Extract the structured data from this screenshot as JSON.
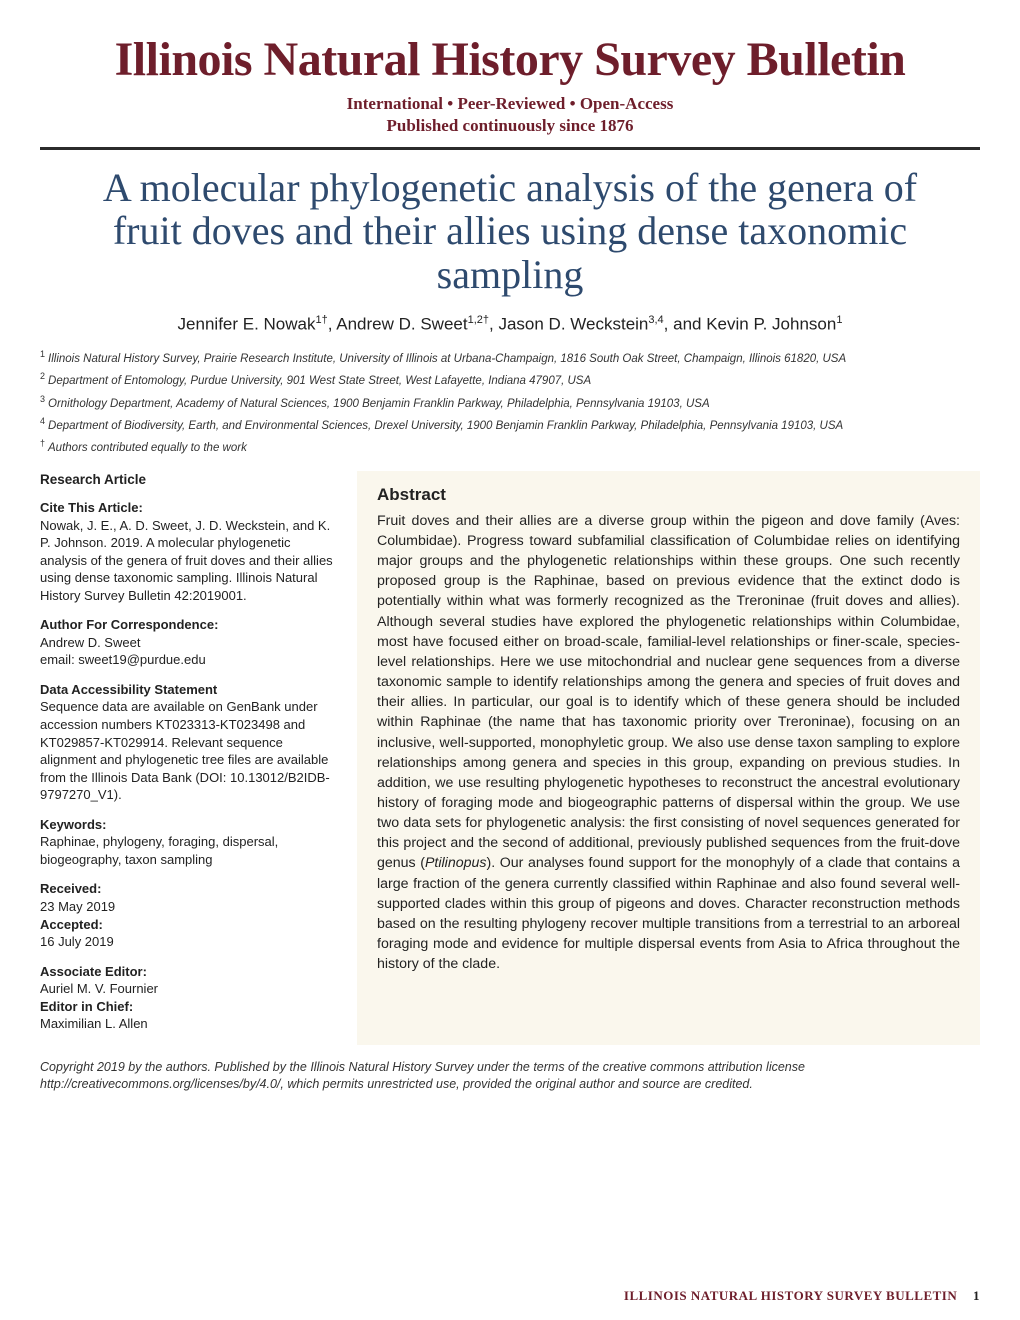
{
  "journal": {
    "title": "Illinois Natural History Survey Bulletin",
    "subtitle_line1": "International  •  Peer-Reviewed  •  Open-Access",
    "subtitle_line2": "Published continuously since 1876"
  },
  "article": {
    "title": "A molecular phylogenetic analysis of the genera of fruit doves and their allies using dense taxonomic sampling",
    "authors_html": "Jennifer E. Nowak<sup>1†</sup>, Andrew D. Sweet<sup>1,2†</sup>, Jason D. Weckstein<sup>3,4</sup>, and Kevin P. Johnson<sup>1</sup>",
    "affiliations": [
      {
        "num": "1",
        "text": "Illinois Natural History Survey, Prairie Research Institute, University of Illinois at Urbana-Champaign, 1816 South Oak Street, Champaign, Illinois 61820, USA"
      },
      {
        "num": "2",
        "text": "Department of Entomology, Purdue University, 901 West State Street, West Lafayette, Indiana 47907, USA"
      },
      {
        "num": "3",
        "text": "Ornithology Department, Academy of Natural Sciences, 1900 Benjamin Franklin Parkway, Philadelphia, Pennsylvania 19103, USA"
      },
      {
        "num": "4",
        "text": "Department of Biodiversity, Earth, and Environmental Sciences, Drexel University, 1900 Benjamin Franklin Parkway, Philadelphia, Pennsylvania 19103, USA"
      },
      {
        "num": "†",
        "text": "Authors contributed equally to the work"
      }
    ]
  },
  "sidebar": {
    "article_type": "Research Article",
    "cite_label": "Cite This Article:",
    "cite_text": "Nowak, J. E., A. D. Sweet, J. D. Weckstein, and K. P. Johnson. 2019. A molecular phylogenetic analysis of the genera of fruit doves and their allies using dense taxonomic sampling. Illinois Natural History Survey Bulletin 42:2019001.",
    "corr_label": "Author For Correspondence:",
    "corr_name": "Andrew D. Sweet",
    "corr_email": "email: sweet19@purdue.edu",
    "data_label": "Data Accessibility Statement",
    "data_text": "Sequence data are available on GenBank under accession numbers KT023313-KT023498 and KT029857-KT029914. Relevant sequence alignment and phylogenetic tree files are available from the Illinois Data Bank (DOI: 10.13012/B2IDB-9797270_V1).",
    "keywords_label": "Keywords:",
    "keywords_text": "Raphinae, phylogeny, foraging, dispersal, biogeography, taxon sampling",
    "received_label": "Received:",
    "received_date": "23 May 2019",
    "accepted_label": "Accepted:",
    "accepted_date": "16 July 2019",
    "assoc_editor_label": "Associate Editor:",
    "assoc_editor_name": "Auriel M. V. Fournier",
    "editor_chief_label": "Editor in Chief:",
    "editor_chief_name": "Maximilian L. Allen"
  },
  "abstract": {
    "heading": "Abstract",
    "text_html": "Fruit doves and their allies are a diverse group within the pigeon and dove family (Aves: Columbidae). Progress toward subfamilial classification of Columbidae relies on identifying major groups and the phylogenetic relationships within these groups. One such recently proposed group is the Raphinae, based on previous evidence that the extinct dodo is potentially within what was formerly recognized as the Treroninae (fruit doves and allies). Although several studies have explored the phylogenetic relationships within Columbidae, most have focused either on broad-scale, familial-level relationships or finer-scale, species-level relationships. Here we use mitochondrial and nuclear gene sequences from a diverse taxonomic sample to identify relationships among the genera and species of fruit doves and their allies. In particular, our goal is to identify which of these genera should be included within Raphinae (the name that has taxonomic priority over Treroninae), focusing on an inclusive, well-supported, monophyletic group. We also use dense taxon sampling to explore relationships among genera and species in this group, expanding on previous studies. In addition, we use resulting phylogenetic hypotheses to reconstruct the ancestral evolutionary history of foraging mode and biogeographic patterns of dispersal within the group. We use two data sets for phylogenetic analysis: the first consisting of novel sequences generated for this project and the second of additional, previously published sequences from the fruit-dove genus (<em>Ptilinopus</em>). Our analyses found support for the monophyly of a clade that contains a large fraction of the genera currently classified within Raphinae and also found several well-supported clades within this group of pigeons and doves. Character reconstruction methods based on the resulting phylogeny recover multiple transitions from a terrestrial to an arboreal foraging mode and evidence for multiple dispersal events from Asia to Africa throughout the history of the clade."
  },
  "copyright": "Copyright 2019 by the authors. Published by the Illinois Natural History Survey under the terms of the creative commons attribution license http://creativecommons.org/licenses/by/4.0/, which permits unrestricted use, provided the original author and source are credited.",
  "footer": {
    "journal": "ILLINOIS NATURAL HISTORY SURVEY BULLETIN",
    "page": "1"
  },
  "colors": {
    "maroon": "#6e1e2b",
    "navy": "#2e4a6e",
    "abstract_bg": "#faf7ed"
  }
}
